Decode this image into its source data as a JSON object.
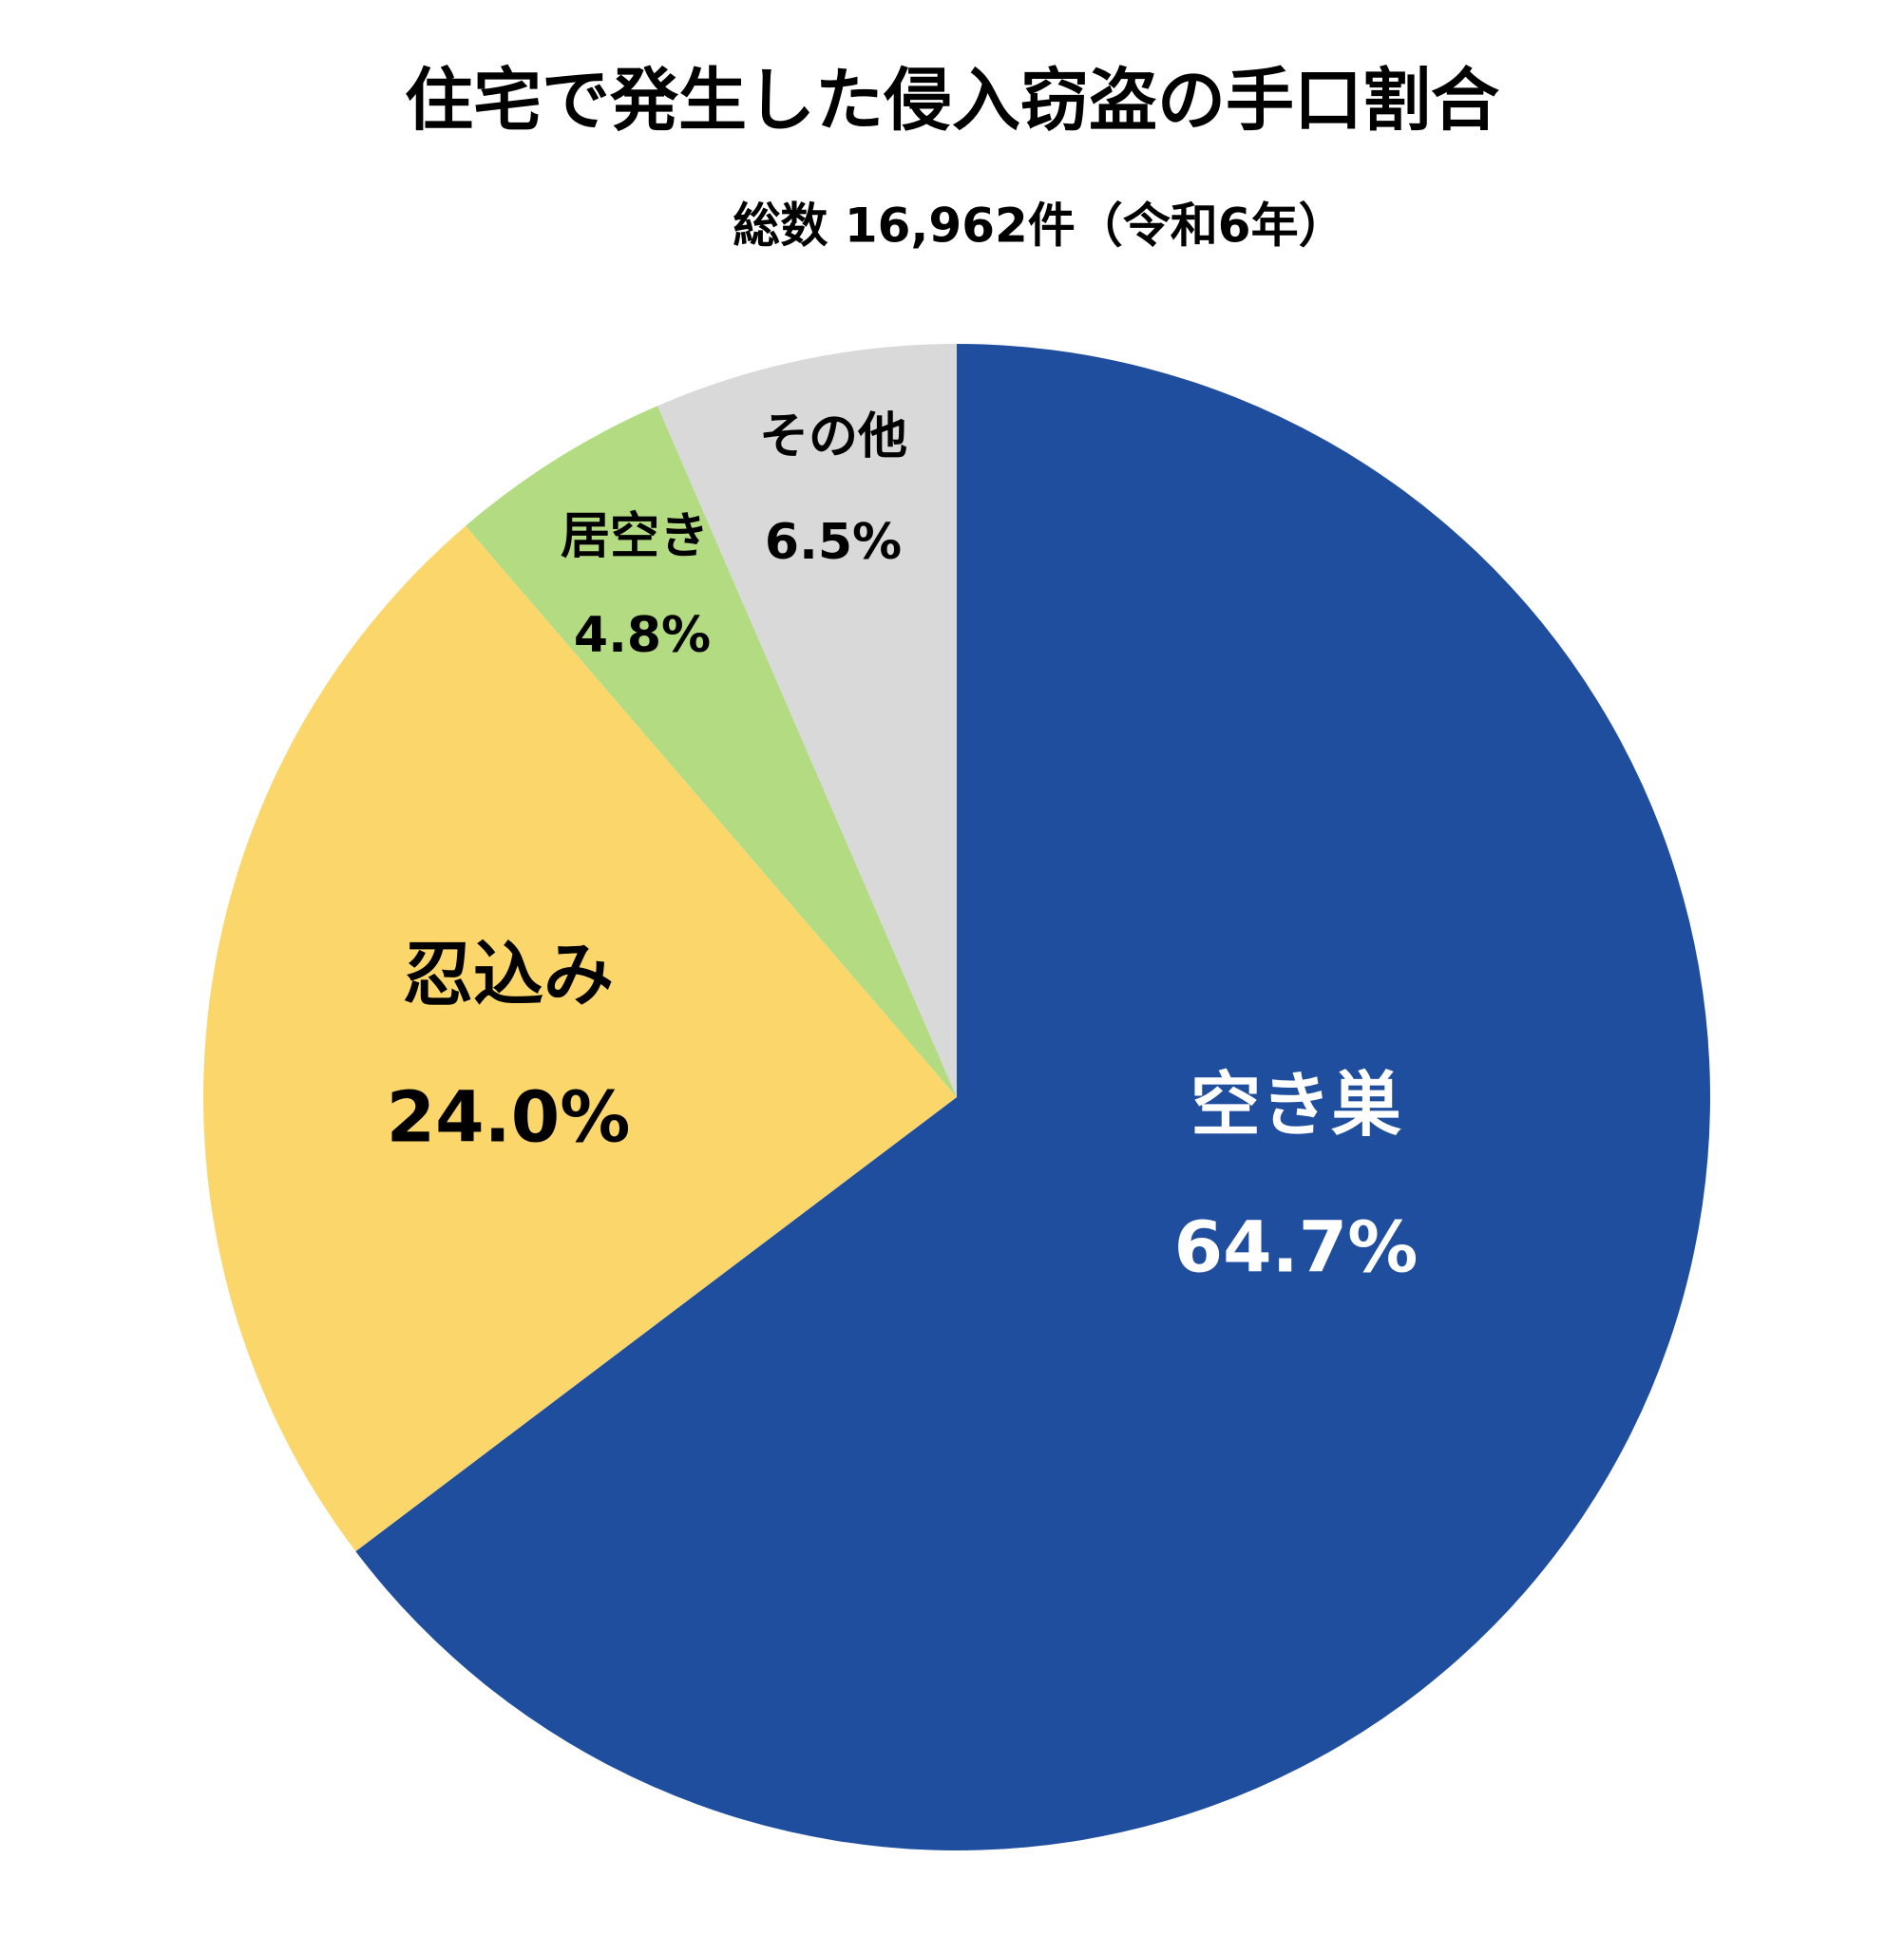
{
  "chart_data": {
    "type": "pie",
    "title": "住宅で発生した侵入窃盗の手口割合",
    "subtitle": "総数 16,962件（令和6年）",
    "categories": [
      "空き巣",
      "忍込み",
      "居空き",
      "その他"
    ],
    "values": [
      64.7,
      24.0,
      4.8,
      6.5
    ],
    "value_labels": [
      "64.7%",
      "24.0%",
      "4.8%",
      "6.5%"
    ],
    "colors": [
      "#1f4e9f",
      "#fbd66b",
      "#b3db82",
      "#d9d9d9"
    ]
  }
}
